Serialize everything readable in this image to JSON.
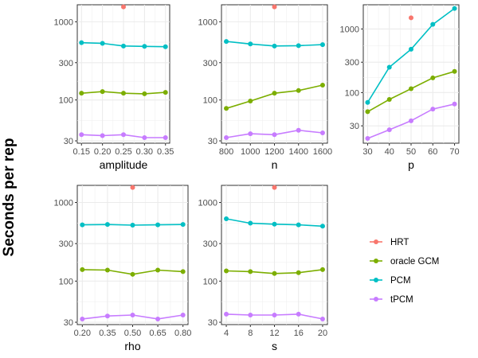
{
  "y_axis_label": "Seconds per rep",
  "colors": {
    "HRT": "#F8766D",
    "oracle GCM": "#7CAE00",
    "PCM": "#00BFC4",
    "tPCM": "#C77CFF"
  },
  "legend": [
    "HRT",
    "oracle GCM",
    "PCM",
    "tPCM"
  ],
  "chart_data": [
    {
      "type": "line",
      "xlabel": "amplitude",
      "ylabel": "Seconds per rep",
      "x": [
        0.15,
        0.2,
        0.25,
        0.3,
        0.35
      ],
      "xticks": [
        "0.15",
        "0.20",
        "0.25",
        "0.30",
        "0.35"
      ],
      "yticks": [
        "30",
        "100",
        "300",
        "1000"
      ],
      "ylim": [
        28,
        1650
      ],
      "yscale": "log",
      "series": [
        {
          "name": "HRT",
          "x": [
            0.25
          ],
          "values": [
            1550
          ]
        },
        {
          "name": "oracle GCM",
          "values": [
            122,
            128,
            122,
            120,
            125
          ]
        },
        {
          "name": "PCM",
          "values": [
            540,
            530,
            490,
            485,
            480
          ]
        },
        {
          "name": "tPCM",
          "values": [
            36,
            35,
            36,
            33,
            33
          ]
        }
      ]
    },
    {
      "type": "line",
      "xlabel": "n",
      "ylabel": "Seconds per rep",
      "x": [
        800,
        1000,
        1200,
        1400,
        1600
      ],
      "xticks": [
        "800",
        "1000",
        "1200",
        "1400",
        "1600"
      ],
      "yticks": [
        "30",
        "100",
        "300",
        "1000"
      ],
      "ylim": [
        28,
        1650
      ],
      "yscale": "log",
      "series": [
        {
          "name": "HRT",
          "x": [
            1200
          ],
          "values": [
            1550
          ]
        },
        {
          "name": "oracle GCM",
          "values": [
            78,
            97,
            122,
            132,
            155
          ]
        },
        {
          "name": "PCM",
          "values": [
            560,
            520,
            490,
            495,
            510
          ]
        },
        {
          "name": "tPCM",
          "values": [
            33,
            37,
            36,
            41,
            38
          ]
        }
      ]
    },
    {
      "type": "line",
      "xlabel": "p",
      "ylabel": "Seconds per rep",
      "x": [
        30,
        40,
        50,
        60,
        70
      ],
      "xticks": [
        "30",
        "40",
        "50",
        "60",
        "70"
      ],
      "yticks": [
        "30",
        "100",
        "300",
        "1000"
      ],
      "ylim": [
        16,
        2400
      ],
      "yscale": "log",
      "series": [
        {
          "name": "HRT",
          "x": [
            50
          ],
          "values": [
            1500
          ]
        },
        {
          "name": "oracle GCM",
          "values": [
            50,
            78,
            115,
            170,
            215
          ]
        },
        {
          "name": "PCM",
          "values": [
            70,
            250,
            480,
            1180,
            2100
          ]
        },
        {
          "name": "tPCM",
          "values": [
            19,
            26,
            36,
            55,
            66
          ]
        }
      ]
    },
    {
      "type": "line",
      "xlabel": "rho",
      "ylabel": "Seconds per rep",
      "x": [
        0.2,
        0.35,
        0.5,
        0.65,
        0.8
      ],
      "xticks": [
        "0.20",
        "0.35",
        "0.50",
        "0.65",
        "0.80"
      ],
      "yticks": [
        "30",
        "100",
        "300",
        "1000"
      ],
      "ylim": [
        28,
        1650
      ],
      "yscale": "log",
      "series": [
        {
          "name": "HRT",
          "x": [
            0.5
          ],
          "values": [
            1550
          ]
        },
        {
          "name": "oracle GCM",
          "values": [
            140,
            138,
            122,
            138,
            132
          ]
        },
        {
          "name": "PCM",
          "values": [
            520,
            525,
            515,
            520,
            525
          ]
        },
        {
          "name": "tPCM",
          "values": [
            33,
            36,
            37,
            33,
            37
          ]
        }
      ]
    },
    {
      "type": "line",
      "xlabel": "s",
      "ylabel": "Seconds per rep",
      "x": [
        4,
        8,
        12,
        16,
        20
      ],
      "xticks": [
        "4",
        "8",
        "12",
        "16",
        "20"
      ],
      "yticks": [
        "30",
        "100",
        "300",
        "1000"
      ],
      "ylim": [
        28,
        1650
      ],
      "yscale": "log",
      "series": [
        {
          "name": "HRT",
          "x": [
            12
          ],
          "values": [
            1550
          ]
        },
        {
          "name": "oracle GCM",
          "values": [
            135,
            132,
            125,
            128,
            140
          ]
        },
        {
          "name": "PCM",
          "values": [
            620,
            545,
            530,
            520,
            500
          ]
        },
        {
          "name": "tPCM",
          "values": [
            38,
            37,
            37,
            38,
            33
          ]
        }
      ]
    }
  ]
}
